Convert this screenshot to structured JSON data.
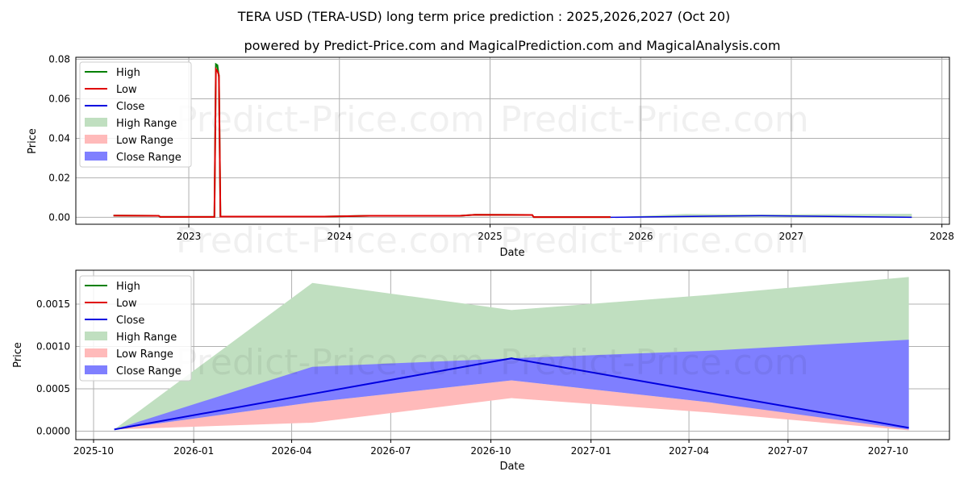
{
  "title": "TERA USD (TERA-USD) long term price prediction : 2025,2026,2027 (Oct 20)",
  "subtitle": "powered by Predict-Price.com and MagicalPrediction.com and MagicalAnalysis.com",
  "watermark": "Predict-Price.com",
  "colors": {
    "high": "#008000",
    "low": "#e00000",
    "close": "#0000e0",
    "high_range": "#c0dfc0",
    "low_range": "#ffbaba",
    "close_range": "#7f7fff"
  },
  "legend": [
    "High",
    "Low",
    "Close",
    "High Range",
    "Low Range",
    "Close Range"
  ],
  "chart_data": [
    {
      "type": "line",
      "xlabel": "Date",
      "ylabel": "Price",
      "xlim": [
        2022.25,
        2028.05
      ],
      "ylim": [
        -0.0035,
        0.081
      ],
      "xticks": [
        2023,
        2024,
        2025,
        2026,
        2027,
        2028
      ],
      "xtick_labels": [
        "2023",
        "2024",
        "2025",
        "2026",
        "2027",
        "2028"
      ],
      "yticks": [
        0,
        0.02,
        0.04,
        0.06,
        0.08
      ],
      "ytick_labels": [
        "0.00",
        "0.02",
        "0.04",
        "0.06",
        "0.08"
      ],
      "grid": true,
      "legend_position": "top-left",
      "history_high": [
        [
          2022.5,
          0.0009
        ],
        [
          2022.8,
          0.0008
        ],
        [
          2022.81,
          0.0002
        ],
        [
          2023.17,
          0.0002
        ],
        [
          2023.18,
          0.0775
        ],
        [
          2023.19,
          0.077
        ],
        [
          2023.2,
          0.071
        ],
        [
          2023.21,
          0.0004
        ],
        [
          2023.9,
          0.0004
        ],
        [
          2024.2,
          0.0008
        ],
        [
          2024.8,
          0.0008
        ],
        [
          2024.9,
          0.0013
        ],
        [
          2025.28,
          0.0012
        ],
        [
          2025.29,
          0.0001
        ],
        [
          2025.8,
          0.0001
        ]
      ],
      "history_low": [
        [
          2022.5,
          0.0009
        ],
        [
          2022.8,
          0.0008
        ],
        [
          2022.81,
          0.0002
        ],
        [
          2023.17,
          0.0002
        ],
        [
          2023.18,
          0.075
        ],
        [
          2023.19,
          0.074
        ],
        [
          2023.2,
          0.072
        ],
        [
          2023.21,
          0.0004
        ],
        [
          2023.9,
          0.0004
        ],
        [
          2024.2,
          0.0008
        ],
        [
          2024.8,
          0.0008
        ],
        [
          2024.9,
          0.0013
        ],
        [
          2025.28,
          0.0012
        ],
        [
          2025.29,
          0.0001
        ],
        [
          2025.8,
          0.0001
        ]
      ],
      "forecast_close": [
        [
          2025.8,
          2e-05
        ],
        [
          2026.8,
          0.00086
        ],
        [
          2027.8,
          4e-05
        ]
      ],
      "forecast_high_range": [
        [
          2025.8,
          2e-05
        ],
        [
          2026.3,
          0.00175
        ],
        [
          2026.8,
          0.00143
        ],
        [
          2027.8,
          0.00182
        ]
      ]
    },
    {
      "type": "area",
      "xlabel": "Date",
      "ylabel": "Price",
      "ylim": [
        -0.0001,
        0.0019
      ],
      "xticks": [
        "2025-10",
        "2026-01",
        "2026-04",
        "2026-07",
        "2026-10",
        "2027-01",
        "2027-04",
        "2027-07",
        "2027-10"
      ],
      "yticks": [
        0,
        0.0005,
        0.001,
        0.0015
      ],
      "ytick_labels": [
        "0.0000",
        "0.0005",
        "0.0010",
        "0.0015"
      ],
      "grid": true,
      "legend_position": "top-left",
      "x": [
        "2025-10-20",
        "2026-04-20",
        "2026-10-20",
        "2027-04-20",
        "2027-10-20"
      ],
      "series": [
        {
          "name": "High Range",
          "lower": [
            2e-05,
            0.00034,
            0.0006,
            0.00034,
            3e-05
          ],
          "upper": [
            2e-05,
            0.00175,
            0.00143,
            0.00161,
            0.00182
          ]
        },
        {
          "name": "Low Range",
          "lower": [
            2e-05,
            0.0001,
            0.00039,
            0.00022,
            1e-05
          ],
          "upper": [
            2e-05,
            0.00034,
            0.0006,
            0.00034,
            3e-05
          ]
        },
        {
          "name": "Close Range",
          "lower": [
            2e-05,
            0.00034,
            0.0006,
            0.00034,
            2e-05
          ],
          "upper": [
            2e-05,
            0.00076,
            0.00086,
            0.00095,
            0.00108
          ]
        },
        {
          "name": "Close",
          "values": [
            2e-05,
            0.00044,
            0.00086,
            0.00045,
            4e-05
          ]
        }
      ]
    }
  ]
}
